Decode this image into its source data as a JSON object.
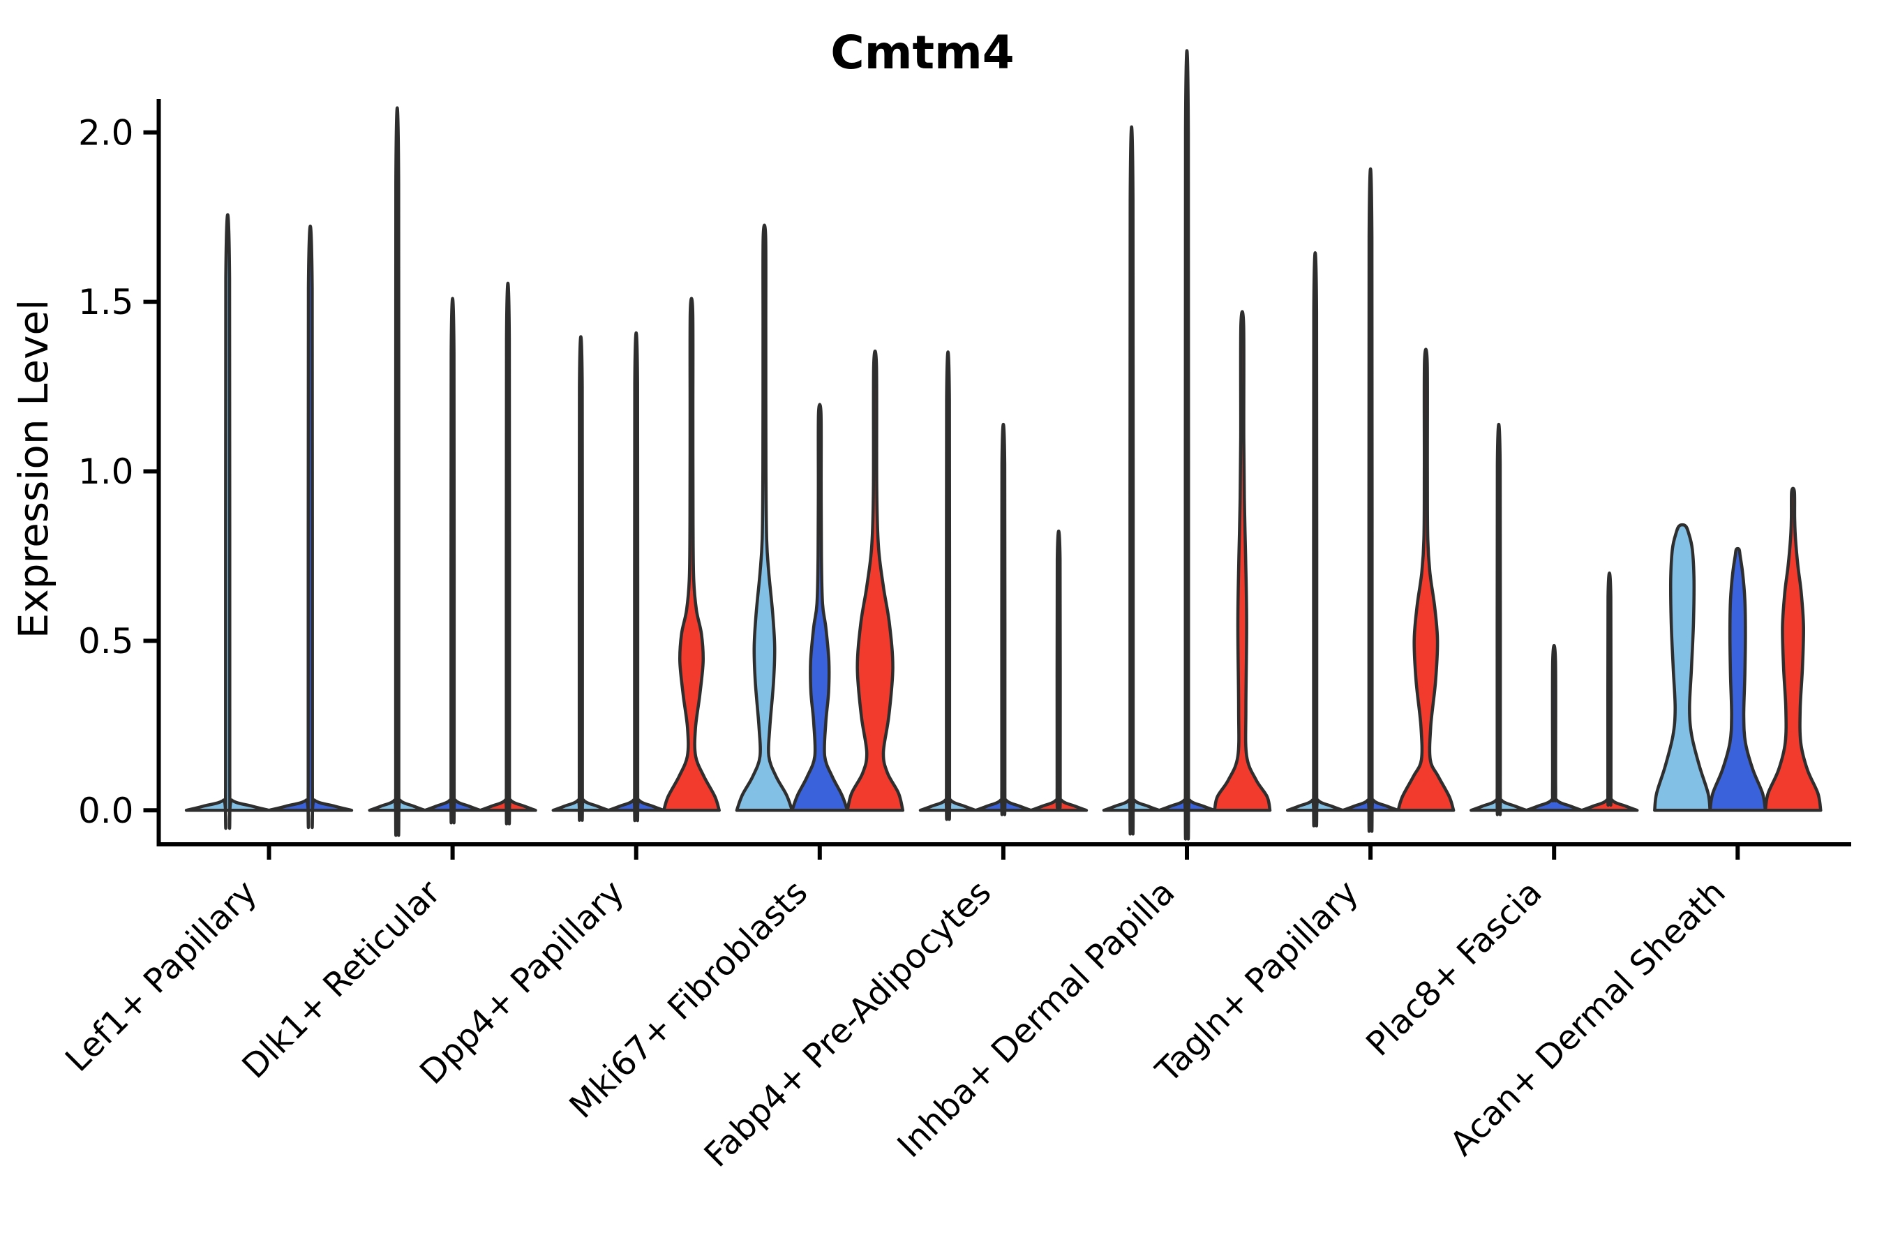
{
  "chart_data": {
    "type": "violin",
    "title": "Cmtm4",
    "ylabel": "Expression Level",
    "xlabel": "",
    "ylim": [
      -0.1,
      2.1
    ],
    "ytick_values": [
      0.0,
      0.5,
      1.0,
      1.5,
      2.0
    ],
    "ytick_labels": [
      "0.0",
      "0.5",
      "1.0",
      "1.5",
      "2.0"
    ],
    "grid": false,
    "legend_position": "none",
    "colors": {
      "light_blue": "#82C0E6",
      "dark_blue": "#3A63DB",
      "red": "#F23B2C",
      "violin_outline": "#2E2E2E",
      "axis": "#000000",
      "background": "#FFFFFF"
    },
    "series_colors": [
      "#82C0E6",
      "#3A63DB",
      "#F23B2C"
    ],
    "categories": [
      "Lef1+ Papillary",
      "Dlk1+ Reticular",
      "Dpp4+ Papillary",
      "Mki67+ Fibroblasts",
      "Fabp4+ Pre-Adipocytes",
      "Inhba+ Dermal Papilla",
      "Tagln+ Papillary",
      "Plac8+ Fascia",
      "Acan+ Dermal Sheath"
    ],
    "groups": [
      {
        "label": "Lef1+ Papillary",
        "violins": [
          {
            "color": "#82C0E6",
            "max": 1.57,
            "shape": "spike",
            "profile": [
              [
                0,
                1
              ],
              [
                0.012,
                0.6
              ],
              [
                0.03,
                0.1
              ],
              [
                0.07,
                0.05
              ],
              [
                1.57,
                0.045
              ]
            ]
          },
          {
            "color": "#3A63DB",
            "max": 1.54,
            "shape": "spike",
            "profile": [
              [
                0,
                1
              ],
              [
                0.012,
                0.6
              ],
              [
                0.03,
                0.1
              ],
              [
                0.07,
                0.05
              ],
              [
                1.54,
                0.045
              ]
            ]
          }
        ]
      },
      {
        "label": "Dlk1+ Reticular",
        "violins": [
          {
            "color": "#82C0E6",
            "max": 1.85,
            "shape": "spike",
            "profile": [
              [
                0,
                1
              ],
              [
                0.012,
                0.6
              ],
              [
                0.03,
                0.1
              ],
              [
                0.07,
                0.055
              ],
              [
                1.85,
                0.05
              ]
            ]
          },
          {
            "color": "#3A63DB",
            "max": 1.35,
            "shape": "spike",
            "profile": [
              [
                0,
                1
              ],
              [
                0.012,
                0.6
              ],
              [
                0.03,
                0.1
              ],
              [
                0.07,
                0.055
              ],
              [
                1.35,
                0.05
              ]
            ]
          },
          {
            "color": "#F23B2C",
            "max": 1.39,
            "shape": "spike",
            "profile": [
              [
                0,
                1
              ],
              [
                0.012,
                0.6
              ],
              [
                0.03,
                0.1
              ],
              [
                0.07,
                0.055
              ],
              [
                1.39,
                0.05
              ]
            ]
          }
        ]
      },
      {
        "label": "Dpp4+ Papillary",
        "violins": [
          {
            "color": "#82C0E6",
            "max": 1.25,
            "shape": "spike",
            "profile": [
              [
                0,
                1
              ],
              [
                0.012,
                0.6
              ],
              [
                0.03,
                0.1
              ],
              [
                0.07,
                0.055
              ],
              [
                1.25,
                0.05
              ]
            ]
          },
          {
            "color": "#3A63DB",
            "max": 1.26,
            "shape": "spike",
            "profile": [
              [
                0,
                1
              ],
              [
                0.012,
                0.6
              ],
              [
                0.03,
                0.1
              ],
              [
                0.07,
                0.055
              ],
              [
                1.26,
                0.05
              ]
            ]
          },
          {
            "color": "#F23B2C",
            "max": 1.47,
            "shape": "bulged",
            "profile": [
              [
                0,
                1
              ],
              [
                0.04,
                0.85
              ],
              [
                0.1,
                0.45
              ],
              [
                0.16,
                0.15
              ],
              [
                0.24,
                0.14
              ],
              [
                0.34,
                0.3
              ],
              [
                0.44,
                0.42
              ],
              [
                0.52,
                0.36
              ],
              [
                0.59,
                0.18
              ],
              [
                0.68,
                0.08
              ],
              [
                0.85,
                0.055
              ],
              [
                1.15,
                0.05
              ],
              [
                1.47,
                0.045
              ]
            ]
          }
        ]
      },
      {
        "label": "Mki67+ Fibroblasts",
        "violins": [
          {
            "color": "#82C0E6",
            "max": 1.69,
            "shape": "bulged",
            "profile": [
              [
                0,
                1
              ],
              [
                0.045,
                0.8
              ],
              [
                0.1,
                0.42
              ],
              [
                0.16,
                0.16
              ],
              [
                0.25,
                0.2
              ],
              [
                0.38,
                0.33
              ],
              [
                0.48,
                0.37
              ],
              [
                0.58,
                0.3
              ],
              [
                0.7,
                0.16
              ],
              [
                0.8,
                0.08
              ],
              [
                1.0,
                0.055
              ],
              [
                1.4,
                0.05
              ],
              [
                1.69,
                0.045
              ]
            ]
          },
          {
            "color": "#3A63DB",
            "max": 1.17,
            "shape": "bulged",
            "profile": [
              [
                0,
                1
              ],
              [
                0.045,
                0.8
              ],
              [
                0.1,
                0.45
              ],
              [
                0.16,
                0.18
              ],
              [
                0.26,
                0.22
              ],
              [
                0.35,
                0.32
              ],
              [
                0.44,
                0.33
              ],
              [
                0.54,
                0.22
              ],
              [
                0.61,
                0.1
              ],
              [
                0.75,
                0.06
              ],
              [
                0.95,
                0.05
              ],
              [
                1.17,
                0.045
              ]
            ]
          },
          {
            "color": "#F23B2C",
            "max": 1.31,
            "shape": "bulged",
            "profile": [
              [
                0,
                1
              ],
              [
                0.05,
                0.85
              ],
              [
                0.11,
                0.45
              ],
              [
                0.17,
                0.3
              ],
              [
                0.28,
                0.5
              ],
              [
                0.42,
                0.64
              ],
              [
                0.55,
                0.52
              ],
              [
                0.66,
                0.3
              ],
              [
                0.78,
                0.12
              ],
              [
                0.95,
                0.06
              ],
              [
                1.31,
                0.05
              ]
            ]
          }
        ]
      },
      {
        "label": "Fabp4+ Pre-Adipocytes",
        "violins": [
          {
            "color": "#82C0E6",
            "max": 1.21,
            "shape": "spike",
            "profile": [
              [
                0,
                1
              ],
              [
                0.012,
                0.6
              ],
              [
                0.03,
                0.1
              ],
              [
                0.07,
                0.055
              ],
              [
                1.21,
                0.05
              ]
            ]
          },
          {
            "color": "#3A63DB",
            "max": 1.02,
            "shape": "spike",
            "profile": [
              [
                0,
                1
              ],
              [
                0.012,
                0.6
              ],
              [
                0.03,
                0.1
              ],
              [
                0.07,
                0.055
              ],
              [
                1.02,
                0.05
              ]
            ]
          },
          {
            "color": "#F23B2C",
            "max": 0.74,
            "shape": "spike",
            "profile": [
              [
                0,
                1
              ],
              [
                0.012,
                0.6
              ],
              [
                0.03,
                0.1
              ],
              [
                0.07,
                0.055
              ],
              [
                0.74,
                0.05
              ]
            ]
          }
        ]
      },
      {
        "label": "Inhba+ Dermal Papilla",
        "violins": [
          {
            "color": "#82C0E6",
            "max": 1.8,
            "shape": "spike",
            "profile": [
              [
                0,
                1
              ],
              [
                0.012,
                0.6
              ],
              [
                0.03,
                0.1
              ],
              [
                0.07,
                0.055
              ],
              [
                1.8,
                0.05
              ]
            ]
          },
          {
            "color": "#3A63DB",
            "max": 2.0,
            "shape": "spike",
            "profile": [
              [
                0,
                1
              ],
              [
                0.012,
                0.6
              ],
              [
                0.03,
                0.1
              ],
              [
                0.07,
                0.055
              ],
              [
                2.0,
                0.05
              ]
            ]
          },
          {
            "color": "#F23B2C",
            "max": 1.43,
            "shape": "bulged",
            "profile": [
              [
                0,
                1
              ],
              [
                0.04,
                0.9
              ],
              [
                0.09,
                0.5
              ],
              [
                0.16,
                0.16
              ],
              [
                0.3,
                0.13
              ],
              [
                0.55,
                0.16
              ],
              [
                0.75,
                0.12
              ],
              [
                0.9,
                0.08
              ],
              [
                1.1,
                0.055
              ],
              [
                1.43,
                0.05
              ]
            ]
          }
        ]
      },
      {
        "label": "Tagln+ Papillary",
        "violins": [
          {
            "color": "#82C0E6",
            "max": 1.47,
            "shape": "spike",
            "profile": [
              [
                0,
                1
              ],
              [
                0.012,
                0.6
              ],
              [
                0.03,
                0.1
              ],
              [
                0.07,
                0.055
              ],
              [
                1.47,
                0.05
              ]
            ]
          },
          {
            "color": "#3A63DB",
            "max": 1.69,
            "shape": "spike",
            "profile": [
              [
                0,
                1
              ],
              [
                0.012,
                0.6
              ],
              [
                0.03,
                0.1
              ],
              [
                0.07,
                0.055
              ],
              [
                1.69,
                0.05
              ]
            ]
          },
          {
            "color": "#F23B2C",
            "max": 1.32,
            "shape": "bulged",
            "profile": [
              [
                0,
                1
              ],
              [
                0.04,
                0.85
              ],
              [
                0.1,
                0.45
              ],
              [
                0.15,
                0.16
              ],
              [
                0.25,
                0.18
              ],
              [
                0.38,
                0.35
              ],
              [
                0.5,
                0.42
              ],
              [
                0.6,
                0.32
              ],
              [
                0.7,
                0.15
              ],
              [
                0.8,
                0.07
              ],
              [
                1.0,
                0.055
              ],
              [
                1.32,
                0.05
              ]
            ]
          }
        ]
      },
      {
        "label": "Plac8+ Fascia",
        "violins": [
          {
            "color": "#82C0E6",
            "max": 1.02,
            "shape": "spike",
            "profile": [
              [
                0,
                1
              ],
              [
                0.012,
                0.6
              ],
              [
                0.03,
                0.1
              ],
              [
                0.07,
                0.055
              ],
              [
                1.02,
                0.05
              ]
            ]
          },
          {
            "color": "#3A63DB",
            "max": 0.44,
            "shape": "spike",
            "profile": [
              [
                0,
                1
              ],
              [
                0.012,
                0.6
              ],
              [
                0.03,
                0.1
              ],
              [
                0.07,
                0.055
              ],
              [
                0.44,
                0.05
              ]
            ]
          },
          {
            "color": "#F23B2C",
            "max": 0.63,
            "shape": "spike",
            "profile": [
              [
                0,
                1
              ],
              [
                0.012,
                0.6
              ],
              [
                0.03,
                0.1
              ],
              [
                0.07,
                0.055
              ],
              [
                0.63,
                0.05
              ]
            ]
          }
        ]
      },
      {
        "label": "Acan+ Dermal Sheath",
        "violins": [
          {
            "color": "#82C0E6",
            "max": 0.84,
            "shape": "bottle",
            "profile": [
              [
                0,
                1
              ],
              [
                0.05,
                0.93
              ],
              [
                0.13,
                0.62
              ],
              [
                0.22,
                0.34
              ],
              [
                0.3,
                0.26
              ],
              [
                0.42,
                0.33
              ],
              [
                0.55,
                0.4
              ],
              [
                0.68,
                0.42
              ],
              [
                0.77,
                0.36
              ],
              [
                0.82,
                0.22
              ],
              [
                0.84,
                0.1
              ]
            ]
          },
          {
            "color": "#3A63DB",
            "max": 0.77,
            "shape": "bottle",
            "profile": [
              [
                0,
                1
              ],
              [
                0.05,
                0.9
              ],
              [
                0.12,
                0.55
              ],
              [
                0.2,
                0.28
              ],
              [
                0.28,
                0.22
              ],
              [
                0.4,
                0.26
              ],
              [
                0.52,
                0.28
              ],
              [
                0.62,
                0.26
              ],
              [
                0.7,
                0.18
              ],
              [
                0.75,
                0.09
              ],
              [
                0.77,
                0.05
              ]
            ]
          },
          {
            "color": "#F23B2C",
            "max": 0.94,
            "shape": "bottle",
            "profile": [
              [
                0,
                1
              ],
              [
                0.05,
                0.9
              ],
              [
                0.12,
                0.52
              ],
              [
                0.2,
                0.28
              ],
              [
                0.3,
                0.26
              ],
              [
                0.42,
                0.34
              ],
              [
                0.54,
                0.38
              ],
              [
                0.64,
                0.3
              ],
              [
                0.72,
                0.18
              ],
              [
                0.8,
                0.09
              ],
              [
                0.86,
                0.06
              ],
              [
                0.94,
                0.05
              ]
            ]
          }
        ]
      }
    ]
  }
}
